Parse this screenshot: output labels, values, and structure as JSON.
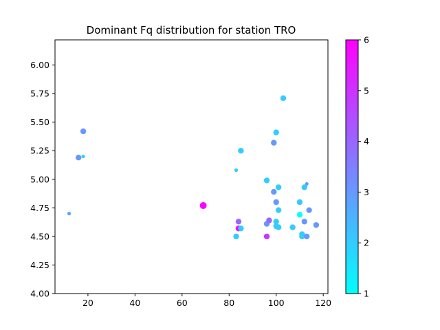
{
  "chart_data": {
    "type": "scatter",
    "title": "Dominant Fq distribution for station TRO",
    "xlabel": "",
    "ylabel": "",
    "xlim": [
      6,
      122
    ],
    "ylim": [
      4.0,
      6.22
    ],
    "xticks": [
      20,
      40,
      60,
      80,
      100,
      120
    ],
    "xtick_labels": [
      "20",
      "40",
      "60",
      "80",
      "100",
      "120"
    ],
    "yticks": [
      4.0,
      4.25,
      4.5,
      4.75,
      5.0,
      5.25,
      5.5,
      5.75,
      6.0
    ],
    "ytick_labels": [
      "4.00",
      "4.25",
      "4.50",
      "4.75",
      "5.00",
      "5.25",
      "5.50",
      "5.75",
      "6.00"
    ],
    "grid": false,
    "colormap": "cool",
    "colorbar": {
      "min": 1,
      "max": 6,
      "ticks": [
        1,
        2,
        3,
        4,
        5,
        6
      ],
      "tick_labels": [
        "1",
        "2",
        "3",
        "4",
        "5",
        "6"
      ]
    },
    "points": [
      {
        "x": 12,
        "y": 4.7,
        "c": 2.8,
        "s": 3
      },
      {
        "x": 16,
        "y": 5.19,
        "c": 3.0,
        "s": 5
      },
      {
        "x": 18,
        "y": 5.2,
        "c": 2.0,
        "s": 3
      },
      {
        "x": 18,
        "y": 5.42,
        "c": 3.0,
        "s": 5
      },
      {
        "x": 69,
        "y": 4.77,
        "c": 6.0,
        "s": 6
      },
      {
        "x": 83,
        "y": 5.08,
        "c": 2.0,
        "s": 3
      },
      {
        "x": 83,
        "y": 4.5,
        "c": 2.0,
        "s": 5
      },
      {
        "x": 84,
        "y": 4.63,
        "c": 4.0,
        "s": 5
      },
      {
        "x": 84,
        "y": 4.57,
        "c": 6.0,
        "s": 5
      },
      {
        "x": 85,
        "y": 4.57,
        "c": 2.0,
        "s": 5
      },
      {
        "x": 85,
        "y": 5.25,
        "c": 2.0,
        "s": 5
      },
      {
        "x": 96,
        "y": 4.99,
        "c": 2.0,
        "s": 5
      },
      {
        "x": 96,
        "y": 4.61,
        "c": 3.0,
        "s": 5
      },
      {
        "x": 96,
        "y": 4.5,
        "c": 5.0,
        "s": 5
      },
      {
        "x": 97,
        "y": 4.64,
        "c": 4.0,
        "s": 5
      },
      {
        "x": 99,
        "y": 5.32,
        "c": 3.0,
        "s": 5
      },
      {
        "x": 99,
        "y": 4.89,
        "c": 3.0,
        "s": 5
      },
      {
        "x": 100,
        "y": 5.41,
        "c": 2.0,
        "s": 5
      },
      {
        "x": 100,
        "y": 4.8,
        "c": 3.0,
        "s": 5
      },
      {
        "x": 100,
        "y": 4.63,
        "c": 2.0,
        "s": 5
      },
      {
        "x": 100,
        "y": 4.59,
        "c": 2.0,
        "s": 5
      },
      {
        "x": 101,
        "y": 4.93,
        "c": 2.0,
        "s": 5
      },
      {
        "x": 101,
        "y": 4.73,
        "c": 2.0,
        "s": 5
      },
      {
        "x": 101,
        "y": 4.58,
        "c": 2.0,
        "s": 5
      },
      {
        "x": 103,
        "y": 5.71,
        "c": 2.0,
        "s": 5
      },
      {
        "x": 107,
        "y": 4.58,
        "c": 2.0,
        "s": 5
      },
      {
        "x": 110,
        "y": 4.8,
        "c": 2.0,
        "s": 5
      },
      {
        "x": 110,
        "y": 4.69,
        "c": 1.0,
        "s": 5
      },
      {
        "x": 111,
        "y": 4.52,
        "c": 2.0,
        "s": 5
      },
      {
        "x": 111,
        "y": 4.5,
        "c": 2.0,
        "s": 5
      },
      {
        "x": 112,
        "y": 4.93,
        "c": 2.0,
        "s": 5
      },
      {
        "x": 112,
        "y": 4.63,
        "c": 3.0,
        "s": 5
      },
      {
        "x": 113,
        "y": 4.96,
        "c": 3.0,
        "s": 3
      },
      {
        "x": 113,
        "y": 4.5,
        "c": 3.0,
        "s": 5
      },
      {
        "x": 114,
        "y": 4.73,
        "c": 3.0,
        "s": 5
      },
      {
        "x": 117,
        "y": 4.6,
        "c": 3.0,
        "s": 5
      }
    ]
  }
}
